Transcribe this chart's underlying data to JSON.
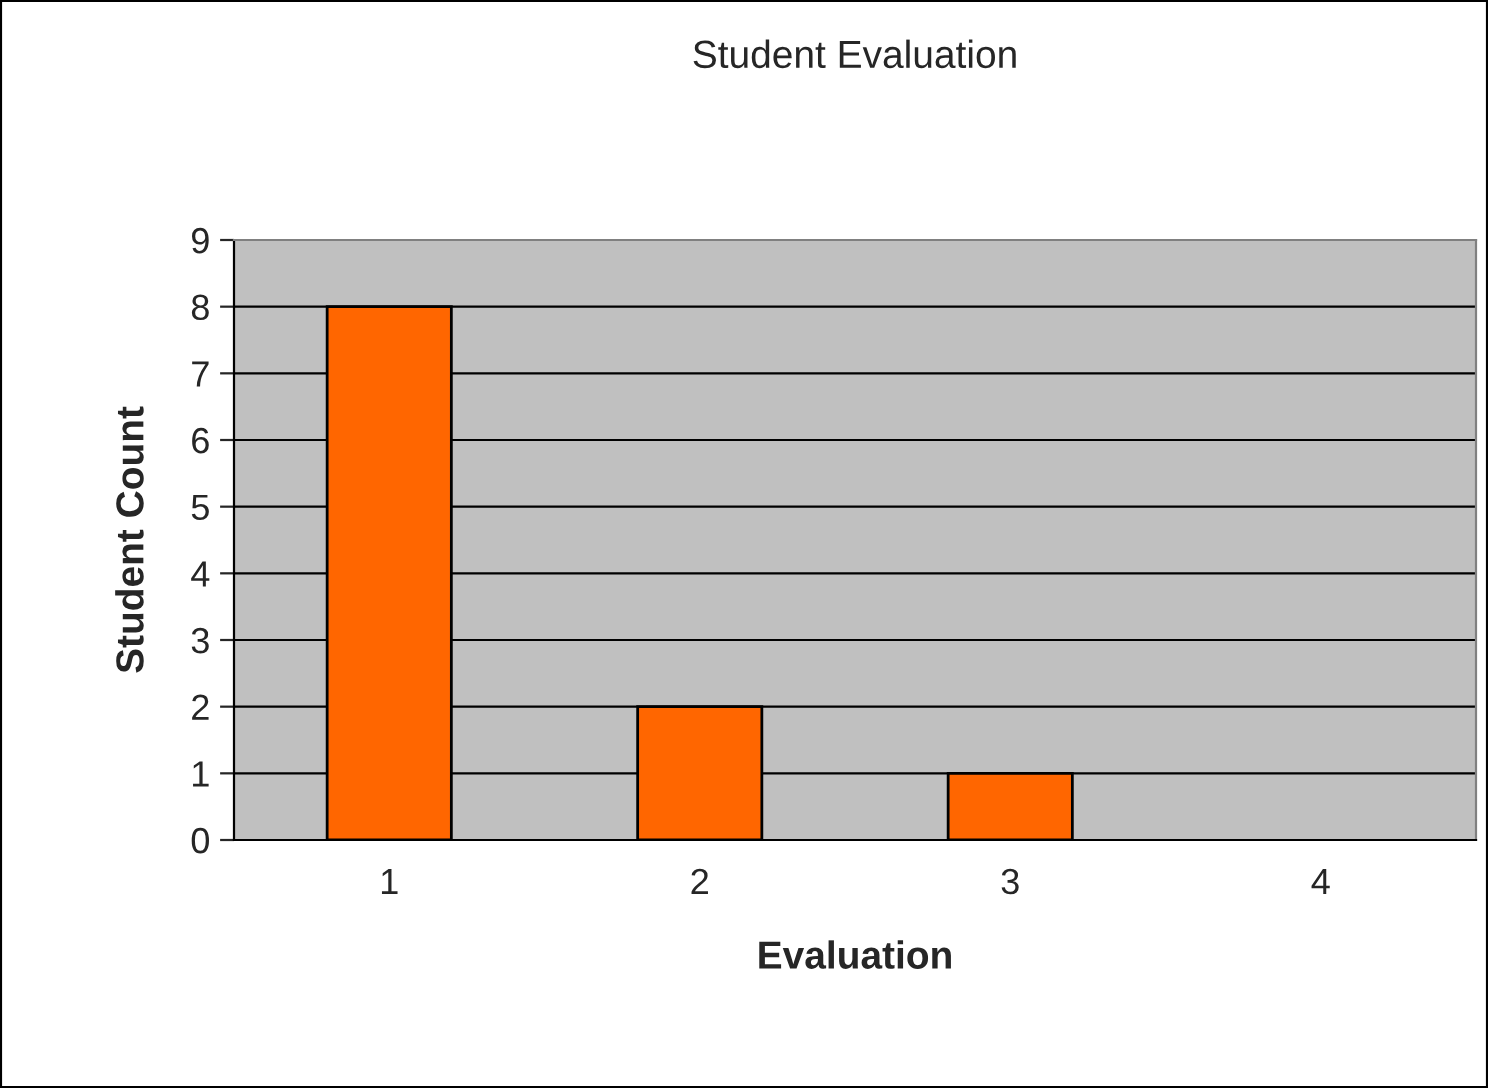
{
  "chart_data": {
    "type": "bar",
    "title": "Student Evaluation",
    "xlabel": "Evaluation",
    "ylabel": "Student Count",
    "categories": [
      "1",
      "2",
      "3",
      "4"
    ],
    "values": [
      8,
      2,
      1,
      0
    ],
    "color": "#ff6600",
    "ylim": [
      0,
      9
    ],
    "yticks": [
      0,
      1,
      2,
      3,
      4,
      5,
      6,
      7,
      8,
      9
    ],
    "grid": "y",
    "legend": false
  }
}
